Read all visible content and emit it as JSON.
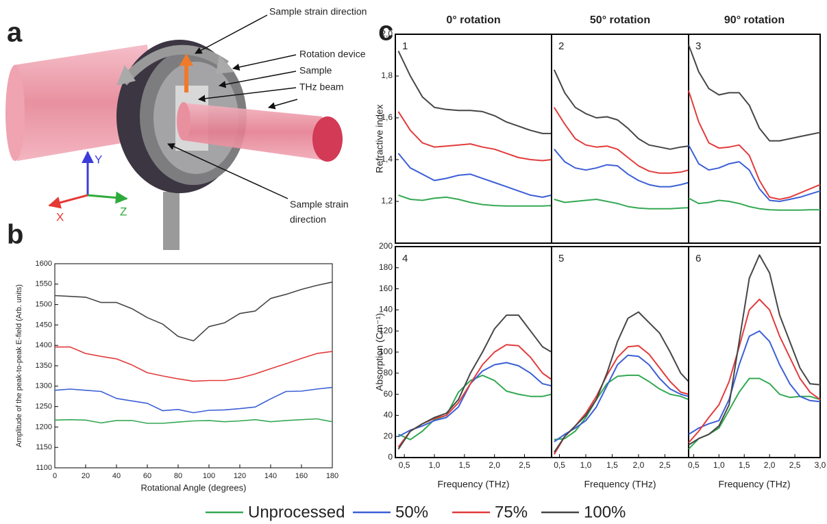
{
  "panel_labels": [
    "a",
    "b",
    "c"
  ],
  "illustration": {
    "annotations": [
      "Sample strain direction",
      "Rotation device",
      "Sample",
      "THz beam",
      "Sample strain direction"
    ],
    "axes": [
      "Y",
      "X",
      "Z"
    ]
  },
  "chart_data": [
    {
      "type": "line",
      "xlabel": "Rotational Angle (degrees)",
      "ylabel": "Amplitude of the peak-to-peak E-field (Arb. units)",
      "x": [
        0,
        10,
        20,
        30,
        40,
        50,
        60,
        70,
        80,
        90,
        100,
        110,
        120,
        130,
        140,
        150,
        160,
        170,
        180
      ],
      "xlim": [
        0,
        180
      ],
      "xticks": [
        0,
        20,
        40,
        60,
        80,
        100,
        120,
        140,
        160,
        180
      ],
      "ylim": [
        1100,
        1600
      ],
      "yticks": [
        1100,
        1150,
        1200,
        1250,
        1300,
        1350,
        1400,
        1450,
        1500,
        1550,
        1600
      ],
      "series": [
        {
          "name": "Unprocessed",
          "color": "#34a853",
          "values": [
            1217,
            1218,
            1217,
            1210,
            1216,
            1216,
            1209,
            1209,
            1212,
            1215,
            1216,
            1213,
            1215,
            1218,
            1213,
            1216,
            1218,
            1220,
            1213
          ]
        },
        {
          "name": "50%",
          "color": "#3b5fd6",
          "values": [
            1290,
            1293,
            1290,
            1287,
            1270,
            1264,
            1258,
            1240,
            1243,
            1235,
            1241,
            1242,
            1245,
            1249,
            1269,
            1287,
            1288,
            1293,
            1297
          ]
        },
        {
          "name": "75%",
          "color": "#e23b3b",
          "values": [
            1396,
            1396,
            1380,
            1373,
            1367,
            1352,
            1333,
            1325,
            1318,
            1312,
            1314,
            1314,
            1320,
            1330,
            1343,
            1355,
            1368,
            1380,
            1385
          ]
        },
        {
          "name": "100%",
          "color": "#454545",
          "values": [
            1522,
            1520,
            1518,
            1505,
            1505,
            1490,
            1468,
            1452,
            1422,
            1411,
            1446,
            1455,
            1478,
            1484,
            1515,
            1525,
            1537,
            1547,
            1555
          ]
        }
      ]
    },
    {
      "type": "line",
      "title": "0° rotation",
      "annotation": "1",
      "ylabel": "Refractive index",
      "x": [
        0.4,
        0.6,
        0.8,
        1.0,
        1.2,
        1.4,
        1.6,
        1.8,
        2.0,
        2.2,
        2.4,
        2.6,
        2.8,
        2.95
      ],
      "xlim": [
        0.35,
        2.95
      ],
      "ylim": [
        1.0,
        2.0
      ],
      "yticks": [
        {
          "value": 1.2,
          "label": "1,2"
        },
        {
          "value": 1.4,
          "label": "1,4"
        },
        {
          "value": 1.6,
          "label": "1,6"
        },
        {
          "value": 1.8,
          "label": "1,8"
        },
        {
          "value": 2.0,
          "label": "2,0"
        }
      ],
      "series": [
        {
          "name": "Unprocessed",
          "color": "#34a853",
          "values": [
            1.23,
            1.21,
            1.205,
            1.215,
            1.22,
            1.21,
            1.195,
            1.185,
            1.18,
            1.178,
            1.178,
            1.178,
            1.178,
            1.18
          ]
        },
        {
          "name": "50%",
          "color": "#3b5fd6",
          "values": [
            1.43,
            1.36,
            1.33,
            1.3,
            1.31,
            1.325,
            1.33,
            1.31,
            1.29,
            1.27,
            1.25,
            1.23,
            1.22,
            1.23
          ]
        },
        {
          "name": "75%",
          "color": "#e23b3b",
          "values": [
            1.63,
            1.54,
            1.48,
            1.46,
            1.465,
            1.47,
            1.475,
            1.46,
            1.45,
            1.43,
            1.41,
            1.4,
            1.395,
            1.4
          ]
        },
        {
          "name": "100%",
          "color": "#454545",
          "values": [
            1.92,
            1.8,
            1.7,
            1.65,
            1.64,
            1.635,
            1.635,
            1.63,
            1.61,
            1.58,
            1.56,
            1.54,
            1.525,
            1.525
          ]
        }
      ]
    },
    {
      "type": "line",
      "title": "50° rotation",
      "annotation": "2",
      "x": [
        0.4,
        0.6,
        0.8,
        1.0,
        1.2,
        1.4,
        1.6,
        1.8,
        2.0,
        2.2,
        2.4,
        2.6,
        2.8,
        2.95
      ],
      "xlim": [
        0.35,
        2.95
      ],
      "ylim": [
        1.0,
        2.0
      ],
      "series": [
        {
          "name": "Unprocessed",
          "color": "#34a853",
          "values": [
            1.21,
            1.195,
            1.2,
            1.205,
            1.21,
            1.2,
            1.19,
            1.175,
            1.168,
            1.165,
            1.165,
            1.165,
            1.168,
            1.17
          ]
        },
        {
          "name": "50%",
          "color": "#3b5fd6",
          "values": [
            1.45,
            1.39,
            1.36,
            1.35,
            1.36,
            1.375,
            1.37,
            1.33,
            1.3,
            1.28,
            1.27,
            1.27,
            1.28,
            1.29
          ]
        },
        {
          "name": "75%",
          "color": "#e23b3b",
          "values": [
            1.65,
            1.57,
            1.5,
            1.47,
            1.46,
            1.465,
            1.45,
            1.41,
            1.37,
            1.345,
            1.335,
            1.335,
            1.34,
            1.35
          ]
        },
        {
          "name": "100%",
          "color": "#454545",
          "values": [
            1.83,
            1.72,
            1.65,
            1.62,
            1.6,
            1.605,
            1.59,
            1.55,
            1.5,
            1.47,
            1.46,
            1.45,
            1.46,
            1.465
          ]
        }
      ]
    },
    {
      "type": "line",
      "title": "90° rotation",
      "annotation": "3",
      "x": [
        0.4,
        0.6,
        0.8,
        1.0,
        1.2,
        1.4,
        1.6,
        1.8,
        2.0,
        2.2,
        2.4,
        2.6,
        2.8,
        3.0
      ],
      "xlim": [
        0.4,
        3.0
      ],
      "ylim": [
        1.0,
        2.0
      ],
      "series": [
        {
          "name": "Unprocessed",
          "color": "#34a853",
          "values": [
            1.215,
            1.19,
            1.195,
            1.205,
            1.2,
            1.19,
            1.175,
            1.165,
            1.16,
            1.158,
            1.158,
            1.158,
            1.16,
            1.16
          ]
        },
        {
          "name": "50%",
          "color": "#3b5fd6",
          "values": [
            1.47,
            1.38,
            1.35,
            1.36,
            1.38,
            1.39,
            1.35,
            1.26,
            1.205,
            1.2,
            1.21,
            1.22,
            1.235,
            1.25
          ]
        },
        {
          "name": "75%",
          "color": "#e23b3b",
          "values": [
            1.73,
            1.58,
            1.48,
            1.455,
            1.46,
            1.47,
            1.42,
            1.3,
            1.22,
            1.21,
            1.22,
            1.24,
            1.26,
            1.28
          ]
        },
        {
          "name": "100%",
          "color": "#454545",
          "values": [
            1.95,
            1.82,
            1.74,
            1.71,
            1.72,
            1.72,
            1.66,
            1.55,
            1.49,
            1.49,
            1.5,
            1.51,
            1.52,
            1.53
          ]
        }
      ]
    },
    {
      "type": "line",
      "annotation": "4",
      "xlabel": "Frequency (THz)",
      "ylabel": "Absorption (Cm⁻¹)",
      "x": [
        0.4,
        0.6,
        0.8,
        1.0,
        1.2,
        1.4,
        1.6,
        1.8,
        2.0,
        2.2,
        2.4,
        2.6,
        2.8,
        2.95
      ],
      "xlim": [
        0.35,
        2.95
      ],
      "xticks": [
        {
          "value": 0.5,
          "label": "0,5"
        },
        {
          "value": 1.0,
          "label": "1,0"
        },
        {
          "value": 1.5,
          "label": "1,5"
        },
        {
          "value": 2.0,
          "label": "2,0"
        },
        {
          "value": 2.5,
          "label": "2,5"
        }
      ],
      "ylim": [
        0,
        200
      ],
      "yticks": [
        0,
        20,
        40,
        60,
        80,
        100,
        120,
        140,
        160,
        180,
        200
      ],
      "series": [
        {
          "name": "Unprocessed",
          "color": "#34a853",
          "values": [
            22,
            17,
            25,
            36,
            40,
            62,
            73,
            78,
            73,
            63,
            60,
            58,
            58,
            60
          ]
        },
        {
          "name": "50%",
          "color": "#3b5fd6",
          "values": [
            20,
            26,
            30,
            35,
            38,
            48,
            70,
            82,
            88,
            90,
            87,
            80,
            70,
            68
          ]
        },
        {
          "name": "75%",
          "color": "#e23b3b",
          "values": [
            10,
            25,
            32,
            37,
            40,
            52,
            70,
            88,
            100,
            107,
            106,
            95,
            80,
            74
          ]
        },
        {
          "name": "100%",
          "color": "#454545",
          "values": [
            8,
            25,
            32,
            38,
            42,
            55,
            80,
            100,
            122,
            135,
            135,
            120,
            105,
            100
          ]
        }
      ]
    },
    {
      "type": "line",
      "annotation": "5",
      "xlabel": "Frequency (THz)",
      "x": [
        0.4,
        0.6,
        0.8,
        1.0,
        1.2,
        1.4,
        1.6,
        1.8,
        2.0,
        2.2,
        2.4,
        2.6,
        2.8,
        2.95
      ],
      "xlim": [
        0.35,
        2.95
      ],
      "xticks": [
        {
          "value": 0.5,
          "label": "0,5"
        },
        {
          "value": 1.0,
          "label": "1,0"
        },
        {
          "value": 1.5,
          "label": "1,5"
        },
        {
          "value": 2.0,
          "label": "2,0"
        },
        {
          "value": 2.5,
          "label": "2,5"
        }
      ],
      "ylim": [
        0,
        200
      ],
      "series": [
        {
          "name": "Unprocessed",
          "color": "#34a853",
          "values": [
            17,
            18,
            25,
            38,
            55,
            70,
            77,
            78,
            78,
            72,
            65,
            60,
            58,
            55
          ]
        },
        {
          "name": "50%",
          "color": "#3b5fd6",
          "values": [
            15,
            22,
            28,
            35,
            48,
            68,
            88,
            97,
            96,
            88,
            75,
            65,
            60,
            58
          ]
        },
        {
          "name": "75%",
          "color": "#e23b3b",
          "values": [
            3,
            20,
            30,
            42,
            58,
            78,
            95,
            105,
            106,
            98,
            85,
            72,
            62,
            60
          ]
        },
        {
          "name": "100%",
          "color": "#454545",
          "values": [
            5,
            20,
            30,
            40,
            55,
            80,
            110,
            132,
            138,
            128,
            118,
            100,
            80,
            72
          ]
        }
      ]
    },
    {
      "type": "line",
      "annotation": "6",
      "xlabel": "Frequency (THz)",
      "x": [
        0.4,
        0.6,
        0.8,
        1.0,
        1.2,
        1.4,
        1.6,
        1.8,
        2.0,
        2.2,
        2.4,
        2.6,
        2.8,
        3.0
      ],
      "xlim": [
        0.4,
        3.0
      ],
      "xticks": [
        {
          "value": 0.5,
          "label": "0,5"
        },
        {
          "value": 1.0,
          "label": "1,0"
        },
        {
          "value": 1.5,
          "label": "1,5"
        },
        {
          "value": 2.0,
          "label": "2,0"
        },
        {
          "value": 2.5,
          "label": "2,5"
        },
        {
          "value": 3.0,
          "label": "3,0"
        }
      ],
      "ylim": [
        0,
        200
      ],
      "series": [
        {
          "name": "Unprocessed",
          "color": "#34a853",
          "values": [
            8,
            18,
            22,
            28,
            45,
            62,
            75,
            75,
            70,
            60,
            57,
            58,
            58,
            55
          ]
        },
        {
          "name": "50%",
          "color": "#3b5fd6",
          "values": [
            22,
            28,
            32,
            35,
            55,
            88,
            115,
            120,
            110,
            88,
            70,
            58,
            54,
            53
          ]
        },
        {
          "name": "75%",
          "color": "#e23b3b",
          "values": [
            14,
            25,
            38,
            50,
            72,
            105,
            140,
            150,
            140,
            115,
            95,
            75,
            62,
            55
          ]
        },
        {
          "name": "100%",
          "color": "#454545",
          "values": [
            12,
            18,
            22,
            30,
            50,
            110,
            170,
            192,
            175,
            135,
            110,
            85,
            70,
            69
          ]
        }
      ]
    }
  ]
}
